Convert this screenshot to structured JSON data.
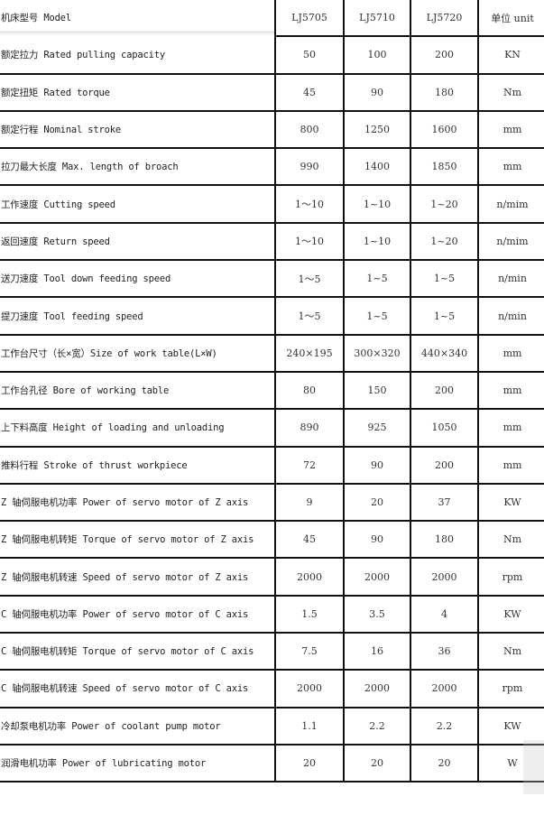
{
  "header": {
    "param": "机床型号 Model",
    "models": [
      "LJ5705",
      "LJ5710",
      "LJ5720"
    ],
    "unit": "单位 unit"
  },
  "rows": [
    {
      "param": "额定拉力 Rated pulling capacity",
      "values": [
        "50",
        "100",
        "200"
      ],
      "unit": "KN"
    },
    {
      "param": "额定扭矩 Rated torque",
      "values": [
        "45",
        "90",
        "180"
      ],
      "unit": "Nm"
    },
    {
      "param": "额定行程 Nominal stroke",
      "values": [
        "800",
        "1250",
        "1600"
      ],
      "unit": "mm"
    },
    {
      "param": "拉刀最大长度 Max. length of broach",
      "values": [
        "990",
        "1400",
        "1850"
      ],
      "unit": "mm"
    },
    {
      "param": "工作速度 Cutting speed",
      "values": [
        "1～10",
        "1~10",
        "1~20"
      ],
      "unit": "n/mim"
    },
    {
      "param": "返回速度 Return speed",
      "values": [
        "1～10",
        "1~10",
        "1~20"
      ],
      "unit": "n/mim"
    },
    {
      "param": "送刀速度 Tool down feeding speed",
      "values": [
        "1～5",
        "1~5",
        "1~5"
      ],
      "unit": "n/min"
    },
    {
      "param": "提刀速度 Tool feeding speed",
      "values": [
        "1～5",
        "1~5",
        "1~5"
      ],
      "unit": "n/min"
    },
    {
      "param": "工作台尺寸（长×宽）Size of work table(L×W)",
      "values": [
        "240×195",
        "300×320",
        "440×340"
      ],
      "unit": "mm"
    },
    {
      "param": "工作台孔径 Bore of working table",
      "values": [
        "80",
        "150",
        "200"
      ],
      "unit": "mm"
    },
    {
      "param": "上下料高度 Height of loading and unloading",
      "values": [
        "890",
        "925",
        "1050"
      ],
      "unit": "mm"
    },
    {
      "param": "推料行程 Stroke of thrust workpiece",
      "values": [
        "72",
        "90",
        "200"
      ],
      "unit": "mm"
    },
    {
      "param": "Z 轴伺服电机功率 Power of servo motor of Z axis",
      "values": [
        "9",
        "20",
        "37"
      ],
      "unit": "KW"
    },
    {
      "param": "Z 轴伺服电机转矩 Torque of servo motor of Z axis",
      "values": [
        "45",
        "90",
        "180"
      ],
      "unit": "Nm"
    },
    {
      "param": "Z 轴伺服电机转速 Speed of servo motor of Z axis",
      "values": [
        "2000",
        "2000",
        "2000"
      ],
      "unit": "rpm"
    },
    {
      "param": "C 轴伺服电机功率 Power of servo motor of C axis",
      "values": [
        "1.5",
        "3.5",
        "4"
      ],
      "unit": "KW"
    },
    {
      "param": "C 轴伺服电机转矩 Torque of servo motor of C axis",
      "values": [
        "7.5",
        "16",
        "36"
      ],
      "unit": "Nm"
    },
    {
      "param": "C 轴伺服电机转速 Speed of servo motor of C axis",
      "values": [
        "2000",
        "2000",
        "2000"
      ],
      "unit": "rpm"
    },
    {
      "param": "冷却泵电机功率 Power of coolant pump motor",
      "values": [
        "1.1",
        "2.2",
        "2.2"
      ],
      "unit": "KW"
    },
    {
      "param": "润滑电机功率 Power of lubricating motor",
      "values": [
        "20",
        "20",
        "20"
      ],
      "unit": "W"
    }
  ]
}
